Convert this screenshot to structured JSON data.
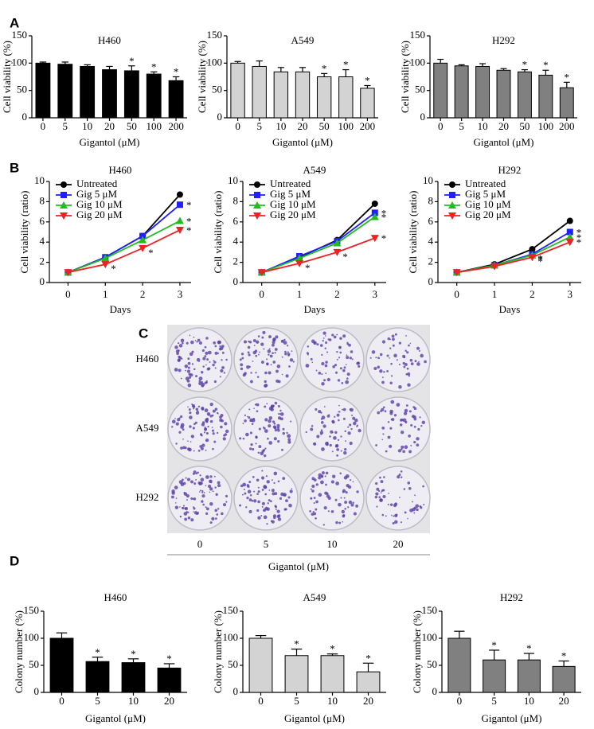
{
  "panel_labels": [
    "A",
    "B",
    "C",
    "D"
  ],
  "chart_data": [
    {
      "type": "bar",
      "title": "H460",
      "xlabel": "Gigantol (μM)",
      "ylabel": "Cell viability (%)",
      "color": "#000000",
      "categories": [
        "0",
        "5",
        "10",
        "20",
        "50",
        "100",
        "200"
      ],
      "values": [
        100,
        98,
        94,
        88,
        86,
        80,
        68
      ],
      "errors": [
        2,
        4,
        3,
        6,
        9,
        4,
        7
      ],
      "significance": [
        null,
        null,
        null,
        null,
        "*",
        "*",
        "*"
      ],
      "ylim": [
        0,
        150
      ],
      "yticks": [
        0,
        50,
        100,
        150
      ]
    },
    {
      "type": "bar",
      "title": "A549",
      "xlabel": "Gigantol (μM)",
      "ylabel": "Cell viability (%)",
      "color": "#d3d3d3",
      "categories": [
        "0",
        "5",
        "10",
        "20",
        "50",
        "100",
        "200"
      ],
      "values": [
        100,
        94,
        84,
        84,
        75,
        75,
        54
      ],
      "errors": [
        3,
        10,
        8,
        8,
        6,
        13,
        5
      ],
      "significance": [
        null,
        null,
        null,
        null,
        "*",
        "*",
        "*"
      ],
      "ylim": [
        0,
        150
      ],
      "yticks": [
        0,
        50,
        100,
        150
      ]
    },
    {
      "type": "bar",
      "title": "H292",
      "xlabel": "Gigantol (μM)",
      "ylabel": "Cell viability (%)",
      "color": "#808080",
      "categories": [
        "0",
        "5",
        "10",
        "20",
        "50",
        "100",
        "200"
      ],
      "values": [
        100,
        95,
        94,
        87,
        84,
        78,
        55
      ],
      "errors": [
        7,
        2,
        5,
        3,
        4,
        9,
        10
      ],
      "significance": [
        null,
        null,
        null,
        null,
        "*",
        "*",
        "*"
      ],
      "ylim": [
        0,
        150
      ],
      "yticks": [
        0,
        50,
        100,
        150
      ]
    },
    {
      "type": "line",
      "title": "H460",
      "xlabel": "Days",
      "ylabel": "Cell viability (ratio)",
      "x": [
        0,
        1,
        2,
        3
      ],
      "xlim": [
        -0.5,
        3.3
      ],
      "xticks": [
        0,
        1,
        2,
        3
      ],
      "ylim": [
        0,
        10
      ],
      "yticks": [
        0,
        2,
        4,
        6,
        8,
        10
      ],
      "series": [
        {
          "name": "Untreated",
          "color": "#000000",
          "marker": "circle",
          "values": [
            1,
            2.5,
            4.6,
            8.7
          ],
          "significance": [
            null,
            null,
            null,
            null
          ]
        },
        {
          "name": "Gig 5 μM",
          "color": "#1f1fff",
          "marker": "square",
          "values": [
            1,
            2.5,
            4.6,
            7.7
          ],
          "significance": [
            null,
            null,
            null,
            "*"
          ]
        },
        {
          "name": "Gig 10 μM",
          "color": "#22bb22",
          "marker": "triangle",
          "values": [
            1,
            2.4,
            4.2,
            6.1
          ],
          "significance": [
            null,
            null,
            null,
            "*"
          ]
        },
        {
          "name": "Gig 20 μM",
          "color": "#ee2222",
          "marker": "down-triangle",
          "values": [
            1,
            1.8,
            3.4,
            5.2
          ],
          "significance": [
            null,
            "*",
            "*",
            "*"
          ]
        }
      ]
    },
    {
      "type": "line",
      "title": "A549",
      "xlabel": "Days",
      "ylabel": "Cell viability (ratio)",
      "x": [
        0,
        1,
        2,
        3
      ],
      "xlim": [
        -0.5,
        3.3
      ],
      "xticks": [
        0,
        1,
        2,
        3
      ],
      "ylim": [
        0,
        10
      ],
      "yticks": [
        0,
        2,
        4,
        6,
        8,
        10
      ],
      "series": [
        {
          "name": "Untreated",
          "color": "#000000",
          "marker": "circle",
          "values": [
            1,
            2.5,
            4.2,
            7.8
          ],
          "significance": [
            null,
            null,
            null,
            null
          ]
        },
        {
          "name": "Gig 5 μM",
          "color": "#1f1fff",
          "marker": "square",
          "values": [
            1,
            2.6,
            4.1,
            6.9
          ],
          "significance": [
            null,
            null,
            null,
            "*"
          ]
        },
        {
          "name": "Gig 10 μM",
          "color": "#22bb22",
          "marker": "triangle",
          "values": [
            1,
            2.4,
            3.9,
            6.5
          ],
          "significance": [
            null,
            null,
            null,
            "*"
          ]
        },
        {
          "name": "Gig 20 μM",
          "color": "#ee2222",
          "marker": "down-triangle",
          "values": [
            1,
            1.9,
            3.0,
            4.4
          ],
          "significance": [
            null,
            "*",
            "*",
            "*"
          ]
        }
      ]
    },
    {
      "type": "line",
      "title": "H292",
      "xlabel": "Days",
      "ylabel": "Cell viability (ratio)",
      "x": [
        0,
        1,
        2,
        3
      ],
      "xlim": [
        -0.5,
        3.3
      ],
      "xticks": [
        0,
        1,
        2,
        3
      ],
      "ylim": [
        0,
        10
      ],
      "yticks": [
        0,
        2,
        4,
        6,
        8,
        10
      ],
      "series": [
        {
          "name": "Untreated",
          "color": "#000000",
          "marker": "circle",
          "values": [
            1,
            1.8,
            3.3,
            6.1
          ],
          "significance": [
            null,
            null,
            null,
            null
          ]
        },
        {
          "name": "Gig 5 μM",
          "color": "#1f1fff",
          "marker": "square",
          "values": [
            1,
            1.7,
            2.8,
            5.0
          ],
          "significance": [
            null,
            null,
            "*",
            "*"
          ]
        },
        {
          "name": "Gig 10 μM",
          "color": "#22bb22",
          "marker": "triangle",
          "values": [
            1,
            1.7,
            2.7,
            4.5
          ],
          "significance": [
            null,
            null,
            "*",
            "*"
          ]
        },
        {
          "name": "Gig 20 μM",
          "color": "#ee2222",
          "marker": "down-triangle",
          "values": [
            1,
            1.6,
            2.5,
            4.0
          ],
          "significance": [
            null,
            null,
            "*",
            "*"
          ]
        }
      ]
    },
    {
      "type": "bar",
      "title": "H460",
      "xlabel": "Gigantol (μM)",
      "ylabel": "Colony number (%)",
      "color": "#000000",
      "categories": [
        "0",
        "5",
        "10",
        "20"
      ],
      "values": [
        100,
        57,
        55,
        45
      ],
      "errors": [
        10,
        8,
        7,
        8
      ],
      "significance": [
        null,
        "*",
        "*",
        "*"
      ],
      "ylim": [
        0,
        150
      ],
      "yticks": [
        0,
        50,
        100,
        150
      ]
    },
    {
      "type": "bar",
      "title": "A549",
      "xlabel": "Gigantol (μM)",
      "ylabel": "Colony number (%)",
      "color": "#d3d3d3",
      "categories": [
        "0",
        "5",
        "10",
        "20"
      ],
      "values": [
        100,
        68,
        68,
        38
      ],
      "errors": [
        5,
        12,
        3,
        16
      ],
      "significance": [
        null,
        "*",
        "*",
        "*"
      ],
      "ylim": [
        0,
        150
      ],
      "yticks": [
        0,
        50,
        100,
        150
      ]
    },
    {
      "type": "bar",
      "title": "H292",
      "xlabel": "Gigantol (μM)",
      "ylabel": "Colony number (%)",
      "color": "#808080",
      "categories": [
        "0",
        "5",
        "10",
        "20"
      ],
      "values": [
        100,
        60,
        60,
        48
      ],
      "errors": [
        13,
        18,
        12,
        10
      ],
      "significance": [
        null,
        "*",
        "*",
        "*"
      ],
      "ylim": [
        0,
        150
      ],
      "yticks": [
        0,
        50,
        100,
        150
      ]
    }
  ],
  "plate_image": {
    "rows": [
      "H460",
      "A549",
      "H292"
    ],
    "columns": [
      "0",
      "5",
      "10",
      "20"
    ],
    "xlabel": "Gigantol (μM)"
  }
}
